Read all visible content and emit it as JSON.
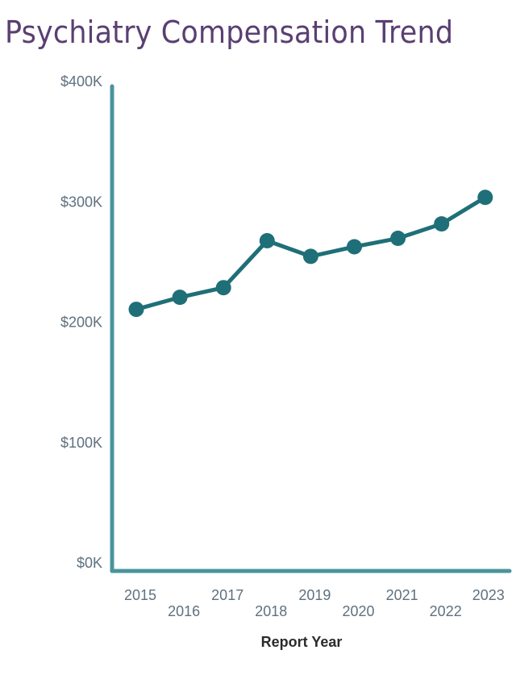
{
  "chart_data": {
    "type": "line",
    "title": "Psychiatry Compensation Trend",
    "xlabel": "Report Year",
    "ylabel": "",
    "categories": [
      "2015",
      "2016",
      "2017",
      "2018",
      "2019",
      "2020",
      "2021",
      "2022",
      "2023"
    ],
    "series": [
      {
        "name": "Psychiatry Compensation",
        "values": [
          210000,
          220000,
          228000,
          267000,
          254000,
          262000,
          269000,
          281000,
          303000
        ],
        "color": "#1f6f78"
      }
    ],
    "ylim": [
      0,
      400000
    ],
    "yticks": [
      0,
      100000,
      200000,
      300000,
      400000
    ],
    "ytick_labels": [
      "$0K",
      "$100K",
      "$200K",
      "$300K",
      "$400K"
    ],
    "grid": false,
    "legend": "none",
    "axis_color": "#4a949c",
    "title_color": "#5a3f72"
  }
}
